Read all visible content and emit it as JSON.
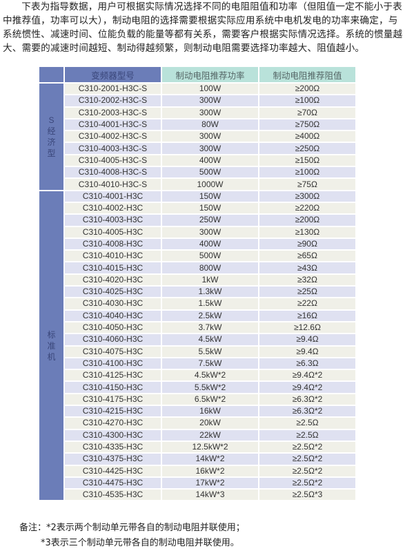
{
  "intro": "下表为指导数据，用户可根据实际情况选择不同的电阻阻值和功率（但阻值一定不能小于表中推荐值，功率可以大），制动电阻的选择需要根据实际应用系统中电机发电的功率来确定，与系统惯性、减速时间、位能负载的能量等都有关系，需要客户根据实际情况选择。系统的惯量越大、需要的减速时间越短、制动得越频繁，则制动电阻需要选择功率越大、阻值越小。",
  "table": {
    "headers": [
      "",
      "变频器型号",
      "制动电阻推荐功率",
      "制动电阻推荐阻值"
    ],
    "groups": [
      {
        "label": "S\n经\n济\n型",
        "rows": [
          [
            "C310-2001-H3C-S",
            "100W",
            "≥200Ω"
          ],
          [
            "C310-2002-H3C-S",
            "300W",
            "≥100Ω"
          ],
          [
            "C310-2003-H3C-S",
            "300W",
            "≥70Ω"
          ],
          [
            "C310-4001-H3C-S",
            "80W",
            "≥750Ω"
          ],
          [
            "C310-4002-H3C-S",
            "300W",
            "≥400Ω"
          ],
          [
            "C310-4003-H3C-S",
            "300W",
            "≥250Ω"
          ],
          [
            "C310-4005-H3C-S",
            "400W",
            "≥150Ω"
          ],
          [
            "C310-4008-H3C-S",
            "500W",
            "≥100Ω"
          ],
          [
            "C310-4010-H3C-S",
            "1000W",
            "≥75Ω"
          ]
        ]
      },
      {
        "label": "标\n准\n机",
        "rows": [
          [
            "C310-4001-H3C",
            "150W",
            "≥300Ω"
          ],
          [
            "C310-4002-H3C",
            "150W",
            "≥220Ω"
          ],
          [
            "C310-4003-H3C",
            "250W",
            "≥200Ω"
          ],
          [
            "C310-4005-H3C",
            "300W",
            "≥130Ω"
          ],
          [
            "C310-4008-H3C",
            "400W",
            "≥90Ω"
          ],
          [
            "C310-4010-H3C",
            "500W",
            "≥65Ω"
          ],
          [
            "C310-4015-H3C",
            "800W",
            "≥43Ω"
          ],
          [
            "C310-4020-H3C",
            "1kW",
            "≥32Ω"
          ],
          [
            "C310-4025-H3C",
            "1.3kW",
            "≥25Ω"
          ],
          [
            "C310-4030-H3C",
            "1.5kW",
            "≥22Ω"
          ],
          [
            "C310-4040-H3C",
            "2.5kW",
            "≥16Ω"
          ],
          [
            "C310-4050-H3C",
            "3.7kW",
            "≥12.6Ω"
          ],
          [
            "C310-4060-H3C",
            "4.5kW",
            "≥9.4Ω"
          ],
          [
            "C310-4075-H3C",
            "5.5kW",
            "≥9.4Ω"
          ],
          [
            "C310-4100-H3C",
            "7.5kW",
            "≥6.3Ω"
          ],
          [
            "C310-4125-H3C",
            "4.5kW*2",
            "≥9.4Ω*2"
          ],
          [
            "C310-4150-H3C",
            "5.5kW*2",
            "≥9.4Ω*2"
          ],
          [
            "C310-4175-H3C",
            "6.5kW*2",
            "≥6.3Ω*2"
          ],
          [
            "C310-4215-H3C",
            "16kW",
            "≥6.3Ω*2"
          ],
          [
            "C310-4270-H3C",
            "20kW",
            "≥2.5Ω"
          ],
          [
            "C310-4300-H3C",
            "22kW",
            "≥2.5Ω"
          ],
          [
            "C310-4335-H3C",
            "12.5kW*2",
            "≥2.5Ω*2"
          ],
          [
            "C310-4375-H3C",
            "14kW*2",
            "≥2.5Ω*2"
          ],
          [
            "C310-4425-H3C",
            "16kW*2",
            "≥2.5Ω*2"
          ],
          [
            "C310-4475-H3C",
            "17kW*2",
            "≥2.5Ω*2"
          ],
          [
            "C310-4535-H3C",
            "14kW*3",
            "≥2.5Ω*3"
          ]
        ]
      }
    ]
  },
  "note": {
    "line1": "备注：*2表示两个制动单元带各自的制动电阻并联使用；",
    "line2": "*3表示三个制动单元带各自的制动电阻并联使用。"
  },
  "colors": {
    "header_blue": "#6b7db8",
    "header_teal": "#b9e2da",
    "row_beige": "#f0f0e8",
    "row_lavender": "#dfe1f1"
  }
}
